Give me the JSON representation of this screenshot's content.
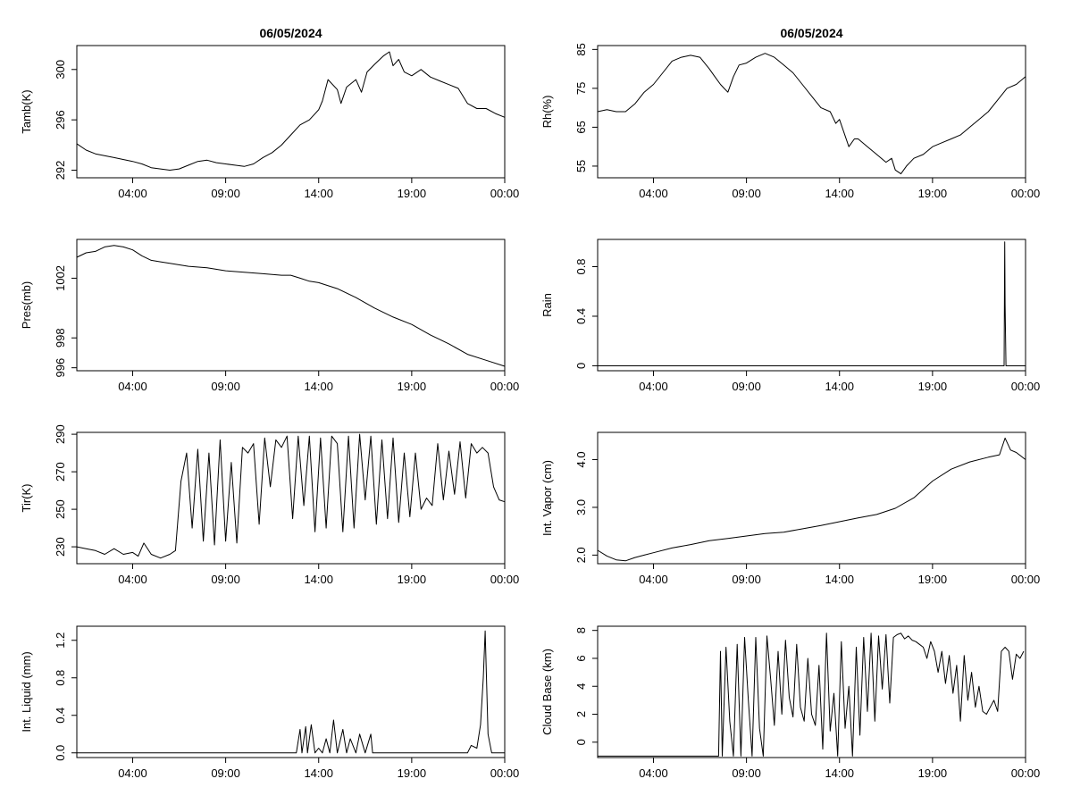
{
  "figure": {
    "background": "#ffffff",
    "line_color": "#000000"
  },
  "chart_data": [
    {
      "type": "line",
      "title": "06/05/2024",
      "ylabel": "Tamb(K)",
      "xticks": [
        "04:00",
        "09:00",
        "14:00",
        "19:00",
        "00:00"
      ],
      "xlim": [
        1,
        24
      ],
      "yticks": [
        292,
        296,
        300
      ],
      "ylim": [
        291.4,
        301.9
      ],
      "x": [
        1,
        1.5,
        2,
        3,
        4,
        4.5,
        5,
        5.5,
        6,
        6.5,
        7,
        7.5,
        8,
        8.5,
        9,
        9.5,
        10,
        10.5,
        11,
        11.5,
        12,
        12.5,
        13,
        13.5,
        14,
        14.2,
        14.5,
        15,
        15.2,
        15.5,
        16,
        16.3,
        16.6,
        17,
        17.5,
        17.8,
        18,
        18.3,
        18.6,
        19,
        19.5,
        20,
        20.5,
        21,
        21.5,
        22,
        22.5,
        23,
        23.5,
        24
      ],
      "values": [
        294.1,
        293.6,
        293.3,
        293,
        292.7,
        292.5,
        292.2,
        292.1,
        292,
        292.1,
        292.4,
        292.7,
        292.8,
        292.6,
        292.5,
        292.4,
        292.3,
        292.5,
        293,
        293.4,
        294,
        294.8,
        295.6,
        296,
        296.8,
        297.5,
        299.2,
        298.4,
        297.3,
        298.6,
        299.2,
        298.2,
        299.8,
        300.4,
        301.1,
        301.4,
        300.3,
        300.8,
        299.8,
        299.5,
        300,
        299.4,
        299.1,
        298.8,
        298.5,
        297.3,
        296.9,
        296.9,
        296.5,
        296.2
      ]
    },
    {
      "type": "line",
      "title": "06/05/2024",
      "ylabel": "Rh(%)",
      "xticks": [
        "04:00",
        "09:00",
        "14:00",
        "19:00",
        "00:00"
      ],
      "xlim": [
        1,
        24
      ],
      "yticks": [
        55,
        65,
        75,
        85
      ],
      "ylim": [
        52,
        86
      ],
      "x": [
        1,
        1.5,
        2,
        2.5,
        3,
        3.5,
        4,
        4.5,
        5,
        5.5,
        6,
        6.5,
        7,
        7.3,
        7.6,
        7.8,
        8,
        8.3,
        8.6,
        9,
        9.5,
        10,
        10.5,
        11,
        11.5,
        12,
        12.5,
        13,
        13.5,
        13.8,
        14,
        14.5,
        14.8,
        15,
        15.5,
        16,
        16.5,
        16.8,
        17,
        17.3,
        17.6,
        18,
        18.5,
        19,
        19.5,
        20,
        20.5,
        21,
        21.5,
        22,
        22.5,
        23,
        23.5,
        24
      ],
      "values": [
        69,
        69.5,
        69,
        69,
        71,
        74,
        76,
        79,
        82,
        83,
        83.5,
        83,
        80,
        78,
        76,
        75,
        74,
        78,
        81,
        81.5,
        83,
        84,
        83,
        81,
        79,
        76,
        73,
        70,
        69,
        66,
        67,
        60,
        62,
        62,
        60,
        58,
        56,
        57,
        54,
        53,
        55,
        57,
        58,
        60,
        61,
        62,
        63,
        65,
        67,
        69,
        72,
        75,
        76,
        78
      ]
    },
    {
      "type": "line",
      "title": "",
      "ylabel": "Pres(mb)",
      "xticks": [
        "04:00",
        "09:00",
        "14:00",
        "19:00",
        "00:00"
      ],
      "xlim": [
        1,
        24
      ],
      "yticks": [
        996,
        998,
        1002
      ],
      "ylim": [
        995.8,
        1004.6
      ],
      "x": [
        1,
        1.5,
        2,
        2.5,
        3,
        3.5,
        4,
        4.5,
        5,
        5.5,
        6,
        7,
        8,
        9,
        10,
        11,
        12,
        12.5,
        13,
        13.5,
        14,
        15,
        16,
        17,
        18,
        19,
        20,
        21,
        22,
        23,
        24
      ],
      "values": [
        1003.4,
        1003.7,
        1003.8,
        1004.1,
        1004.2,
        1004.1,
        1003.9,
        1003.5,
        1003.2,
        1003.1,
        1003,
        1002.8,
        1002.7,
        1002.5,
        1002.4,
        1002.3,
        1002.2,
        1002.2,
        1002,
        1001.8,
        1001.7,
        1001.3,
        1000.7,
        1000,
        999.4,
        998.9,
        998.2,
        997.6,
        996.9,
        996.5,
        996.1
      ]
    },
    {
      "type": "line",
      "title": "",
      "ylabel": "Rain",
      "xticks": [
        "04:00",
        "09:00",
        "14:00",
        "19:00",
        "00:00"
      ],
      "xlim": [
        1,
        24
      ],
      "yticks": [
        0.0,
        0.4,
        0.8
      ],
      "ylim": [
        -0.04,
        1.02
      ],
      "x": [
        1,
        22.8,
        22.85,
        22.88,
        22.9,
        22.95,
        23.0,
        24
      ],
      "values": [
        0,
        0,
        0,
        1.0,
        0.5,
        0,
        0,
        0
      ]
    },
    {
      "type": "line",
      "title": "",
      "ylabel": "Tir(K)",
      "xticks": [
        "04:00",
        "09:00",
        "14:00",
        "19:00",
        "00:00"
      ],
      "xlim": [
        1,
        24
      ],
      "yticks": [
        230,
        250,
        270,
        290
      ],
      "ylim": [
        221,
        291
      ],
      "x": [
        1,
        1.5,
        2,
        2.5,
        3,
        3.5,
        4,
        4.3,
        4.6,
        5,
        5.5,
        6,
        6.3,
        6.6,
        6.9,
        7.2,
        7.5,
        7.8,
        8.1,
        8.4,
        8.7,
        9,
        9.3,
        9.6,
        9.9,
        10.2,
        10.5,
        10.8,
        11.1,
        11.4,
        11.7,
        12,
        12.3,
        12.6,
        12.9,
        13.2,
        13.5,
        13.8,
        14.1,
        14.4,
        14.7,
        15,
        15.3,
        15.6,
        15.9,
        16.2,
        16.5,
        16.8,
        17.1,
        17.4,
        17.7,
        18,
        18.3,
        18.6,
        18.9,
        19.2,
        19.5,
        19.8,
        20.1,
        20.4,
        20.7,
        21,
        21.3,
        21.6,
        21.9,
        22.2,
        22.5,
        22.8,
        23.1,
        23.4,
        23.7,
        24
      ],
      "values": [
        230,
        229,
        228,
        226,
        229,
        226,
        227,
        225,
        232,
        226,
        224,
        226,
        228,
        265,
        280,
        240,
        282,
        233,
        280,
        231,
        287,
        233,
        275,
        232,
        283,
        280,
        285,
        242,
        288,
        262,
        287,
        283,
        289,
        245,
        289,
        252,
        289,
        238,
        288,
        240,
        289,
        285,
        238,
        289,
        240,
        290,
        255,
        289,
        242,
        287,
        245,
        288,
        243,
        280,
        246,
        280,
        250,
        256,
        252,
        285,
        255,
        281,
        258,
        286,
        256,
        285,
        280,
        283,
        280,
        262,
        255,
        254
      ]
    },
    {
      "type": "line",
      "title": "",
      "ylabel": "Int. Vapor (cm)",
      "xticks": [
        "04:00",
        "09:00",
        "14:00",
        "19:00",
        "00:00"
      ],
      "xlim": [
        1,
        24
      ],
      "yticks": [
        "2.0",
        "3.0",
        "4.0"
      ],
      "ylim": [
        1.82,
        4.57
      ],
      "x": [
        1,
        1.5,
        2,
        2.5,
        3,
        3.5,
        4,
        5,
        6,
        7,
        8,
        9,
        10,
        11,
        12,
        13,
        14,
        15,
        16,
        17,
        18,
        19,
        20,
        21,
        22,
        22.6,
        22.9,
        23.2,
        23.5,
        24
      ],
      "values": [
        2.1,
        1.98,
        1.9,
        1.88,
        1.95,
        2.0,
        2.05,
        2.15,
        2.22,
        2.3,
        2.35,
        2.4,
        2.45,
        2.48,
        2.55,
        2.62,
        2.7,
        2.78,
        2.85,
        2.98,
        3.2,
        3.55,
        3.8,
        3.95,
        4.05,
        4.1,
        4.45,
        4.2,
        4.15,
        4.0
      ]
    },
    {
      "type": "line",
      "title": "",
      "ylabel": "Int. Liquid (mm)",
      "xticks": [
        "04:00",
        "09:00",
        "14:00",
        "19:00",
        "00:00"
      ],
      "xlim": [
        1,
        24
      ],
      "yticks": [
        "0.0",
        "0.4",
        "0.8",
        "1.2"
      ],
      "ylim": [
        -0.05,
        1.35
      ],
      "x": [
        1,
        12.8,
        13.0,
        13.1,
        13.3,
        13.4,
        13.6,
        13.8,
        14.0,
        14.2,
        14.4,
        14.6,
        14.8,
        15.0,
        15.3,
        15.5,
        15.7,
        16.0,
        16.2,
        16.5,
        16.8,
        16.9,
        17.0,
        22.0,
        22.2,
        22.5,
        22.7,
        22.85,
        22.95,
        23.1,
        23.3,
        24
      ],
      "values": [
        0,
        0,
        0.25,
        0,
        0.28,
        0,
        0.3,
        0,
        0.05,
        0,
        0.15,
        0,
        0.35,
        0,
        0.25,
        0,
        0.15,
        0,
        0.2,
        0,
        0.2,
        0,
        0,
        0,
        0.08,
        0.05,
        0.3,
        0.8,
        1.3,
        0.2,
        0,
        0
      ]
    },
    {
      "type": "line",
      "title": "",
      "ylabel": "Cloud Base (km)",
      "xticks": [
        "04:00",
        "09:00",
        "14:00",
        "19:00",
        "00:00"
      ],
      "xlim": [
        1,
        24
      ],
      "yticks": [
        0,
        2,
        4,
        6,
        8
      ],
      "ylim": [
        -1.1,
        8.3
      ],
      "x": [
        1,
        7.5,
        7.6,
        7.7,
        7.9,
        8.1,
        8.3,
        8.5,
        8.7,
        8.9,
        9.1,
        9.3,
        9.5,
        9.7,
        9.9,
        10.1,
        10.3,
        10.5,
        10.7,
        10.9,
        11.1,
        11.3,
        11.5,
        11.7,
        11.9,
        12.1,
        12.3,
        12.5,
        12.7,
        12.9,
        13.1,
        13.3,
        13.5,
        13.7,
        13.9,
        14.1,
        14.3,
        14.5,
        14.7,
        14.9,
        15.1,
        15.3,
        15.5,
        15.7,
        15.9,
        16.1,
        16.3,
        16.5,
        16.7,
        16.9,
        17.1,
        17.3,
        17.5,
        17.7,
        17.9,
        18.1,
        18.3,
        18.5,
        18.7,
        18.9,
        19.1,
        19.3,
        19.5,
        19.7,
        19.9,
        20.1,
        20.3,
        20.5,
        20.7,
        20.9,
        21.1,
        21.3,
        21.5,
        21.7,
        21.9,
        22.1,
        22.3,
        22.5,
        22.7,
        22.9,
        23.1,
        23.3,
        23.5,
        23.7,
        23.9
      ],
      "values": [
        -1,
        -1,
        6.5,
        -1,
        6.8,
        1.5,
        -1,
        7.0,
        -1,
        7.5,
        3.0,
        -1,
        7.5,
        1.0,
        -1,
        7.6,
        4.5,
        1.2,
        6.5,
        2.0,
        7.3,
        3.2,
        1.8,
        7.0,
        2.5,
        1.5,
        6.0,
        2.0,
        1.2,
        5.5,
        -0.5,
        7.8,
        0.8,
        3.5,
        -1,
        7.2,
        1.0,
        4.0,
        -1,
        6.8,
        0.5,
        7.5,
        2.2,
        7.8,
        1.5,
        7.6,
        3.8,
        7.7,
        2.8,
        7.5,
        7.7,
        7.8,
        7.4,
        7.6,
        7.3,
        7.2,
        7.0,
        6.8,
        6.0,
        7.2,
        6.5,
        5.0,
        6.5,
        4.2,
        6.2,
        3.5,
        5.5,
        1.5,
        6.2,
        3.0,
        5.0,
        2.5,
        4.0,
        2.2,
        2.0,
        2.5,
        3.0,
        2.2,
        6.5,
        6.8,
        6.5,
        4.5,
        6.3,
        6.0,
        6.5
      ]
    }
  ]
}
